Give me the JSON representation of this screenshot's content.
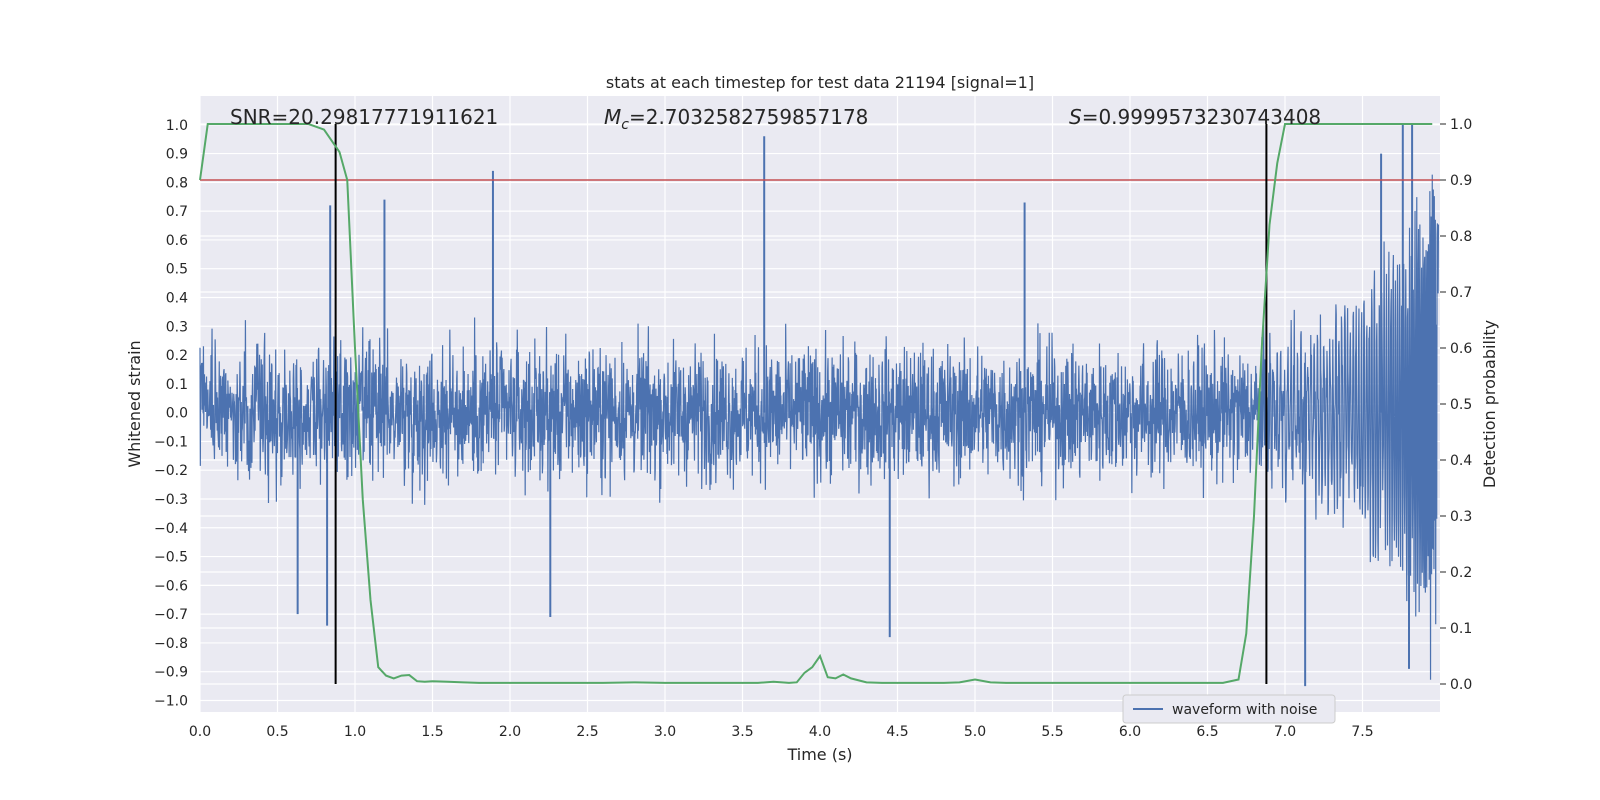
{
  "chart_data": {
    "type": "line",
    "title": "stats at each timestep for test data 21194 [signal=1]",
    "xlabel": "Time (s)",
    "ylabel": "Whitened strain",
    "y2label": "Detection probability",
    "xlim": [
      0.0,
      8.0
    ],
    "ylim": [
      -1.04,
      1.1
    ],
    "y2lim": [
      -0.05,
      1.05
    ],
    "x_ticks": [
      0.0,
      0.5,
      1.0,
      1.5,
      2.0,
      2.5,
      3.0,
      3.5,
      4.0,
      4.5,
      5.0,
      5.5,
      6.0,
      6.5,
      7.0,
      7.5
    ],
    "x_tick_labels": [
      "0.0",
      "0.5",
      "1.0",
      "1.5",
      "2.0",
      "2.5",
      "3.0",
      "3.5",
      "4.0",
      "4.5",
      "5.0",
      "5.5",
      "6.0",
      "6.5",
      "7.0",
      "7.5"
    ],
    "y_ticks": [
      1.0,
      0.9,
      0.8,
      0.7,
      0.6,
      0.5,
      0.4,
      0.3,
      0.2,
      0.1,
      0.0,
      -0.1,
      -0.2,
      -0.3,
      -0.4,
      -0.5,
      -0.6,
      -0.7,
      -0.8,
      -0.9,
      -1.0
    ],
    "y_tick_labels": [
      "1.0",
      "0.9",
      "0.8",
      "0.7",
      "0.6",
      "0.5",
      "0.4",
      "0.3",
      "0.2",
      "0.1",
      "0.0",
      "−0.1",
      "−0.2",
      "−0.3",
      "−0.4",
      "−0.5",
      "−0.6",
      "−0.7",
      "−0.8",
      "−0.9",
      "−1.0"
    ],
    "y2_ticks": [
      1.0,
      0.9,
      0.8,
      0.7,
      0.6,
      0.5,
      0.4,
      0.3,
      0.2,
      0.1,
      0.0
    ],
    "y2_tick_labels": [
      "1.0",
      "0.9",
      "0.8",
      "0.7",
      "0.6",
      "0.5",
      "0.4",
      "0.3",
      "0.2",
      "0.1",
      "0.0"
    ],
    "grid": true,
    "legend_position": "bottom-right",
    "annotations": {
      "snr": "SNR=20.29817771911621",
      "mc_prefix": "M",
      "mc_sub": "c",
      "mc_value": "=2.7032582759857178",
      "s_prefix": "S",
      "s_value": "=0.9999573230743408"
    },
    "series": [
      {
        "name": "waveform with noise",
        "color": "#4c72b0",
        "description_points": "dense noise between approx -0.4 and 0.4 with spikes; chirp signal near 7.0-8.0 s",
        "peaks": [
          {
            "x": 0.84,
            "y": 0.72
          },
          {
            "x": 1.19,
            "y": 0.74
          },
          {
            "x": 1.89,
            "y": 0.84
          },
          {
            "x": 3.64,
            "y": 0.96
          },
          {
            "x": 5.32,
            "y": 0.73
          },
          {
            "x": 7.76,
            "y": 1.0
          },
          {
            "x": 7.82,
            "y": 1.0
          },
          {
            "x": 7.62,
            "y": 0.9
          }
        ],
        "troughs": [
          {
            "x": 0.63,
            "y": -0.7
          },
          {
            "x": 0.82,
            "y": -0.74
          },
          {
            "x": 2.26,
            "y": -0.71
          },
          {
            "x": 4.45,
            "y": -0.78
          },
          {
            "x": 7.13,
            "y": -0.95
          },
          {
            "x": 7.8,
            "y": -0.89
          }
        ]
      },
      {
        "name": "detection probability",
        "color": "#55a868",
        "axis": "right",
        "x": [
          0.0,
          0.05,
          0.1,
          0.2,
          0.3,
          0.4,
          0.5,
          0.6,
          0.7,
          0.8,
          0.85,
          0.9,
          0.95,
          1.0,
          1.05,
          1.1,
          1.15,
          1.2,
          1.25,
          1.3,
          1.35,
          1.4,
          1.45,
          1.5,
          1.6,
          1.7,
          1.8,
          1.9,
          2.0,
          2.2,
          2.4,
          2.6,
          2.8,
          3.0,
          3.2,
          3.4,
          3.6,
          3.7,
          3.8,
          3.85,
          3.9,
          3.95,
          4.0,
          4.05,
          4.1,
          4.15,
          4.2,
          4.3,
          4.4,
          4.6,
          4.8,
          4.9,
          5.0,
          5.1,
          5.2,
          5.5,
          6.0,
          6.5,
          6.6,
          6.7,
          6.75,
          6.8,
          6.85,
          6.9,
          6.95,
          7.0,
          7.1,
          7.5,
          7.95
        ],
        "y": [
          0.9,
          1.0,
          1.0,
          1.0,
          1.0,
          1.0,
          1.0,
          1.0,
          1.0,
          0.99,
          0.97,
          0.95,
          0.9,
          0.6,
          0.33,
          0.15,
          0.03,
          0.015,
          0.01,
          0.015,
          0.016,
          0.005,
          0.004,
          0.005,
          0.004,
          0.003,
          0.002,
          0.002,
          0.002,
          0.002,
          0.002,
          0.002,
          0.003,
          0.002,
          0.002,
          0.002,
          0.002,
          0.004,
          0.002,
          0.003,
          0.02,
          0.03,
          0.05,
          0.012,
          0.01,
          0.017,
          0.01,
          0.003,
          0.002,
          0.002,
          0.002,
          0.003,
          0.008,
          0.003,
          0.002,
          0.002,
          0.002,
          0.002,
          0.002,
          0.008,
          0.09,
          0.3,
          0.6,
          0.82,
          0.93,
          1.0,
          1.0,
          1.0,
          1.0
        ]
      }
    ],
    "reference_lines": {
      "threshold_y2": 0.9,
      "threshold_color": "#c44e52",
      "vertical_lines_x": [
        0.875,
        6.88
      ],
      "vertical_line_color": "#000000"
    }
  }
}
